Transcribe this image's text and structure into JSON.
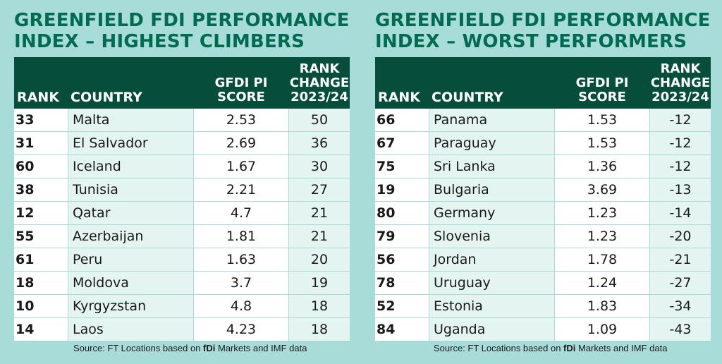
{
  "chart_data": [
    {
      "type": "table",
      "title_line1": "GREENFIELD FDI PERFORMANCE",
      "title_line2": "INDEX – HIGHEST CLIMBERS",
      "headers": {
        "rank": "RANK",
        "country": "COUNTRY",
        "score_line1": "GFDI PI",
        "score_line2": "SCORE",
        "change_line1": "RANK",
        "change_line2": "CHANGE",
        "change_line3": "2023/24"
      },
      "rows": [
        {
          "rank": "33",
          "country": "Malta",
          "score": "2.53",
          "change": "50"
        },
        {
          "rank": "31",
          "country": "El Salvador",
          "score": "2.69",
          "change": "36"
        },
        {
          "rank": "60",
          "country": "Iceland",
          "score": "1.67",
          "change": "30"
        },
        {
          "rank": "38",
          "country": "Tunisia",
          "score": "2.21",
          "change": "27"
        },
        {
          "rank": "12",
          "country": "Qatar",
          "score": "4.7",
          "change": "21"
        },
        {
          "rank": "55",
          "country": "Azerbaijan",
          "score": "1.81",
          "change": "21"
        },
        {
          "rank": "61",
          "country": "Peru",
          "score": "1.63",
          "change": "20"
        },
        {
          "rank": "18",
          "country": "Moldova",
          "score": "3.7",
          "change": "19"
        },
        {
          "rank": "10",
          "country": "Kyrgyzstan",
          "score": "4.8",
          "change": "18"
        },
        {
          "rank": "14",
          "country": "Laos",
          "score": "4.23",
          "change": "18"
        }
      ],
      "source": {
        "prefix": "Source: FT Locations based on ",
        "bold": "fDi",
        "suffix": " Markets and IMF data"
      }
    },
    {
      "type": "table",
      "title_line1": "GREENFIELD FDI PERFORMANCE",
      "title_line2": "INDEX – WORST PERFORMERS",
      "headers": {
        "rank": "RANK",
        "country": "COUNTRY",
        "score_line1": "GFDI PI",
        "score_line2": "SCORE",
        "change_line1": "RANK",
        "change_line2": "CHANGE",
        "change_line3": "2023/24"
      },
      "rows": [
        {
          "rank": "66",
          "country": "Panama",
          "score": "1.53",
          "change": "-12"
        },
        {
          "rank": "67",
          "country": "Paraguay",
          "score": "1.53",
          "change": "-12"
        },
        {
          "rank": "75",
          "country": "Sri Lanka",
          "score": "1.36",
          "change": "-12"
        },
        {
          "rank": "19",
          "country": "Bulgaria",
          "score": "3.69",
          "change": "-13"
        },
        {
          "rank": "80",
          "country": "Germany",
          "score": "1.23",
          "change": "-14"
        },
        {
          "rank": "79",
          "country": "Slovenia",
          "score": "1.23",
          "change": "-20"
        },
        {
          "rank": "56",
          "country": "Jordan",
          "score": "1.78",
          "change": "-21"
        },
        {
          "rank": "78",
          "country": "Uruguay",
          "score": "1.24",
          "change": "-27"
        },
        {
          "rank": "52",
          "country": "Estonia",
          "score": "1.83",
          "change": "-34"
        },
        {
          "rank": "84",
          "country": "Uganda",
          "score": "1.09",
          "change": "-43"
        }
      ],
      "source": {
        "prefix": "Source: FT Locations based on ",
        "bold": "fDi",
        "suffix": " Markets and IMF data"
      }
    }
  ]
}
